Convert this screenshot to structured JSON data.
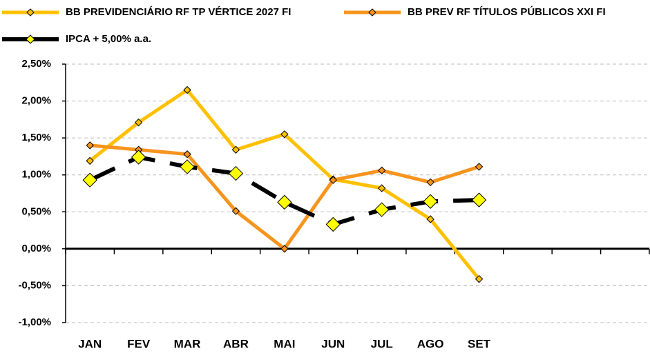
{
  "chart_data": {
    "type": "line",
    "categories": [
      "JAN",
      "FEV",
      "MAR",
      "ABR",
      "MAI",
      "JUN",
      "JUL",
      "AGO",
      "SET",
      null,
      null,
      null
    ],
    "series": [
      {
        "name": "BB PREVIDENCIÁRIO RF TP VÉRTICE 2027 FI",
        "color": "#FFC000",
        "values": [
          1.19,
          1.71,
          2.15,
          1.34,
          1.55,
          0.94,
          0.82,
          0.4,
          -0.41,
          null,
          null,
          null
        ]
      },
      {
        "name": "BB PREV RF TÍTULOS PÚBLICOS XXI FI",
        "color": "#F7941D",
        "values": [
          1.4,
          1.34,
          1.28,
          0.51,
          0.0,
          0.93,
          1.06,
          0.9,
          1.11,
          null,
          null,
          null
        ]
      },
      {
        "name": "IPCA + 5,00% a.a.",
        "color": "#000000",
        "values": [
          0.93,
          1.24,
          1.11,
          1.02,
          0.63,
          0.33,
          0.53,
          0.64,
          0.66,
          null,
          null,
          null
        ]
      }
    ],
    "ylim": [
      -1,
      2.5
    ],
    "yticks": [
      {
        "value": -1,
        "label": "-1,00%"
      },
      {
        "value": -0.5,
        "label": "-0,50%"
      },
      {
        "value": 0,
        "label": "0,00%"
      },
      {
        "value": 0.5,
        "label": "0,50%"
      },
      {
        "value": 1,
        "label": "1,00%"
      },
      {
        "value": 1.5,
        "label": "1,50%"
      },
      {
        "value": 2,
        "label": "2,00%"
      },
      {
        "value": 2.5,
        "label": "2,50%"
      }
    ],
    "grid": true
  }
}
